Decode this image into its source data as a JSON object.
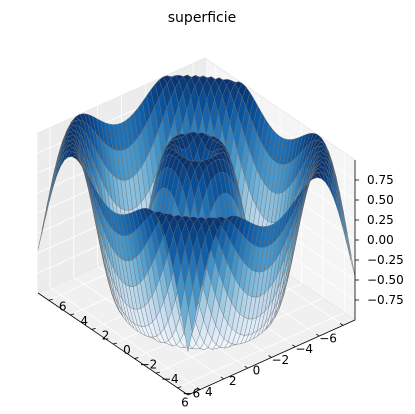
{
  "chart_data": {
    "type": "surface",
    "title": "superficie",
    "function": "z = sin(sqrt(x^2 + y^2))",
    "colormap": "Blues",
    "grid": true,
    "x": {
      "label": "",
      "range": [
        -7,
        7
      ],
      "ticks": [
        -6,
        -4,
        -2,
        0,
        2,
        4,
        6
      ],
      "tick_labels": [
        "−6",
        "−4",
        "−2",
        "0",
        "2",
        "4",
        "6"
      ]
    },
    "y": {
      "label": "",
      "range": [
        -7,
        7
      ],
      "ticks": [
        -6,
        -4,
        -2,
        0,
        2,
        4,
        6
      ],
      "tick_labels": [
        "−6",
        "−4",
        "−2",
        "0",
        "2",
        "4",
        "6"
      ]
    },
    "z": {
      "label": "",
      "range": [
        -1,
        1
      ],
      "ticks": [
        -0.75,
        -0.5,
        -0.25,
        0,
        0.25,
        0.5,
        0.75
      ],
      "tick_labels": [
        "−0.75",
        "−0.50",
        "−0.25",
        "0.00",
        "0.25",
        "0.50",
        "0.75"
      ]
    },
    "grid_resolution": 40
  },
  "colors": {
    "pane_left": "#ececec",
    "pane_right": "#f5f5f5",
    "pane_floor": "#f0f0f0",
    "edge": "#6f6f6f",
    "cmap_low": "#f7fbff",
    "cmap_high": "#08306b"
  }
}
